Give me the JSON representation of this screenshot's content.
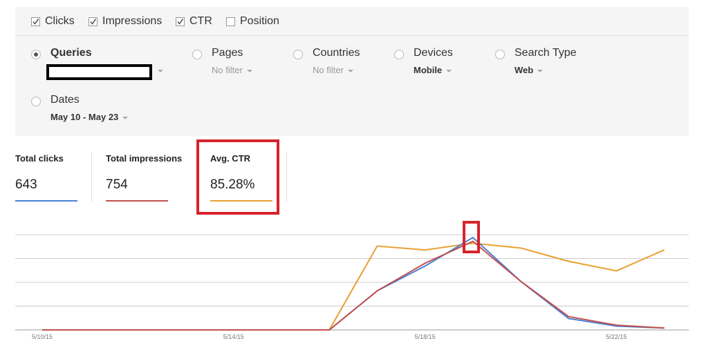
{
  "metric_toggles": [
    {
      "label": "Clicks",
      "checked": true
    },
    {
      "label": "Impressions",
      "checked": true
    },
    {
      "label": "CTR",
      "checked": true
    },
    {
      "label": "Position",
      "checked": false
    }
  ],
  "filters": [
    {
      "label": "Queries",
      "selected": true
    },
    {
      "label": "Pages",
      "selected": false,
      "value": "No filter"
    },
    {
      "label": "Countries",
      "selected": false,
      "value": "No filter"
    },
    {
      "label": "Devices",
      "selected": false,
      "value": "Mobile"
    },
    {
      "label": "Search Type",
      "selected": false,
      "value": "Web"
    },
    {
      "label": "Dates",
      "selected": false,
      "value": "May 10 - May 23"
    }
  ],
  "summary": [
    {
      "label": "Total clicks",
      "value": "643"
    },
    {
      "label": "Total impressions",
      "value": "754"
    },
    {
      "label": "Avg. CTR",
      "value": "85.28%"
    }
  ],
  "chart_data": {
    "type": "line",
    "x": [
      "5/10/15",
      null,
      null,
      null,
      "5/14/15",
      null,
      null,
      null,
      "5/18/15",
      null,
      null,
      null,
      "5/22/15",
      null
    ],
    "series": [
      {
        "color": "#4a7fd4",
        "values": [
          0,
          0,
          0,
          0,
          0,
          0,
          0,
          41,
          67,
          97,
          51,
          12,
          4,
          2
        ]
      },
      {
        "color": "#c0504d",
        "values": [
          0,
          0,
          0,
          0,
          0,
          0,
          0,
          41,
          70,
          93,
          51,
          14,
          5,
          2
        ]
      },
      {
        "color": "#e8a02f",
        "values": [
          0,
          0,
          0,
          0,
          0,
          0,
          0,
          88,
          84,
          91,
          86,
          72,
          62,
          84
        ]
      }
    ],
    "ylim": [
      0,
      100
    ],
    "yticks": [
      0,
      25,
      50,
      75,
      100
    ],
    "grid": true
  }
}
